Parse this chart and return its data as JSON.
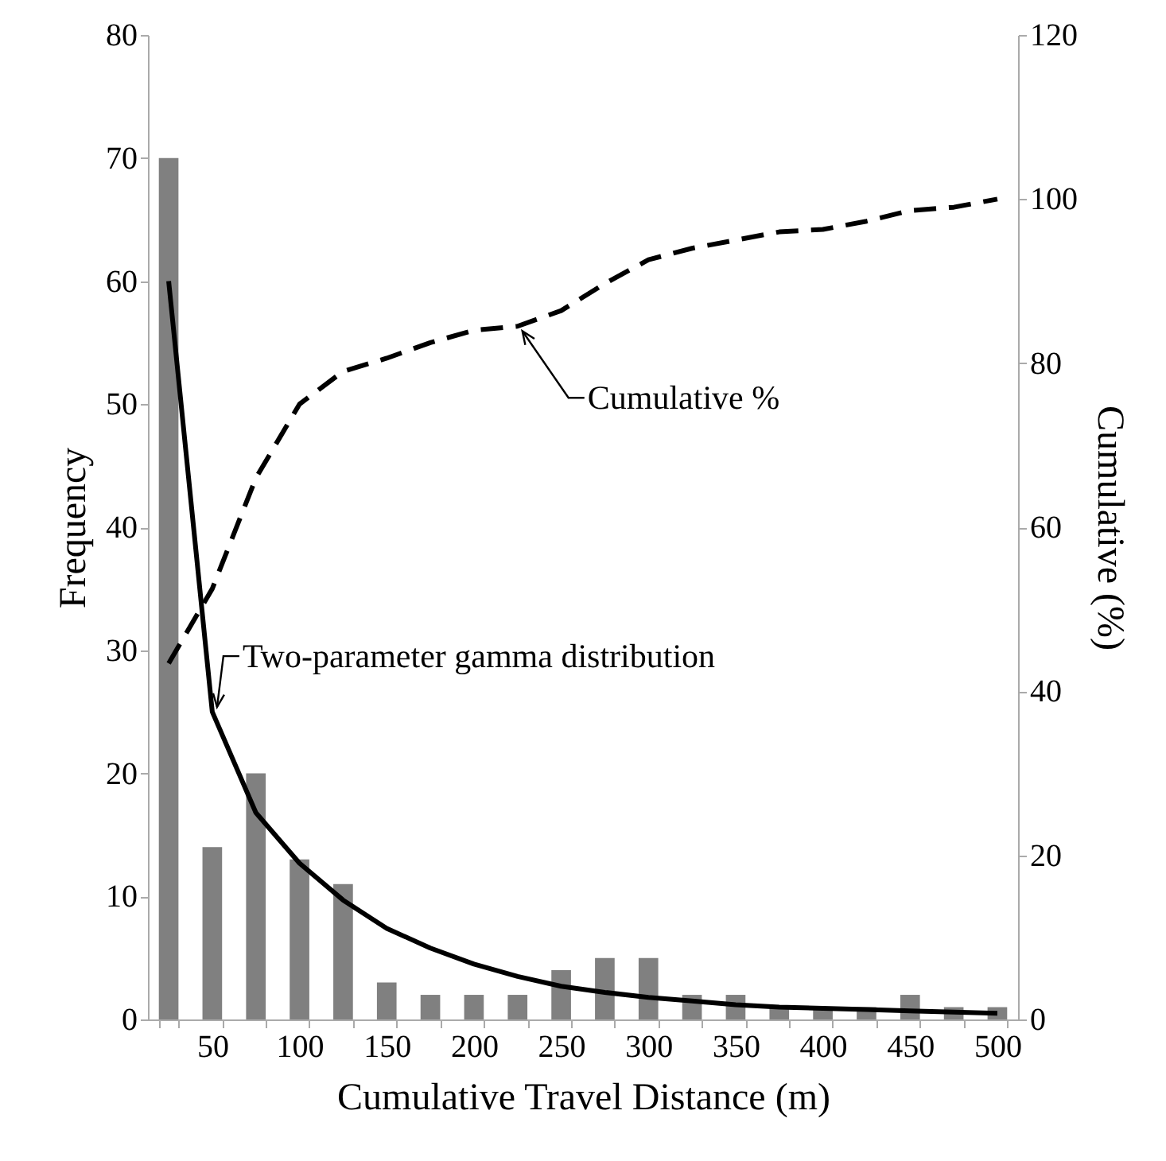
{
  "chart_data": {
    "type": "bar",
    "xlabel": "Cumulative Travel Distance (m)",
    "ylabel": "Frequency",
    "y2label": "Cumulative (%)",
    "categories": [
      null,
      "50",
      null,
      "100",
      null,
      "150",
      null,
      "200",
      null,
      "250",
      null,
      "300",
      null,
      "350",
      null,
      "400",
      null,
      "450",
      null,
      "500"
    ],
    "series": [
      {
        "color": "#808080",
        "values": [
          70,
          14,
          20,
          13,
          11,
          3,
          2,
          2,
          2,
          4,
          5,
          5,
          2,
          2,
          1,
          1,
          1,
          2,
          1,
          1
        ]
      },
      {
        "type": "line",
        "name": "Two-parameter gamma distribution",
        "color": "#000000",
        "line_style": "solid",
        "values": [
          60,
          25,
          16.8,
          12.7,
          9.7,
          7.4,
          5.8,
          4.5,
          3.5,
          2.7,
          2.2,
          1.8,
          1.5,
          1.2,
          1,
          0.9,
          0.8,
          0.7,
          0.6,
          0.5
        ]
      },
      {
        "type": "line",
        "name": "Cumulative %",
        "axis": "y2",
        "color": "#000000",
        "line_style": "dashed",
        "values": [
          43.4,
          52.5,
          66,
          75,
          79,
          80.6,
          82.5,
          84,
          84.5,
          86.4,
          89.7,
          92.6,
          94,
          95,
          96,
          96.3,
          97.3,
          98.6,
          99,
          100
        ]
      }
    ],
    "ylim": [
      0,
      80
    ],
    "yticks": [
      0,
      10,
      20,
      30,
      40,
      50,
      60,
      70,
      80
    ],
    "y2lim": [
      0,
      120
    ],
    "y2ticks": [
      0,
      20,
      40,
      60,
      80,
      100,
      120
    ],
    "grid": false
  }
}
